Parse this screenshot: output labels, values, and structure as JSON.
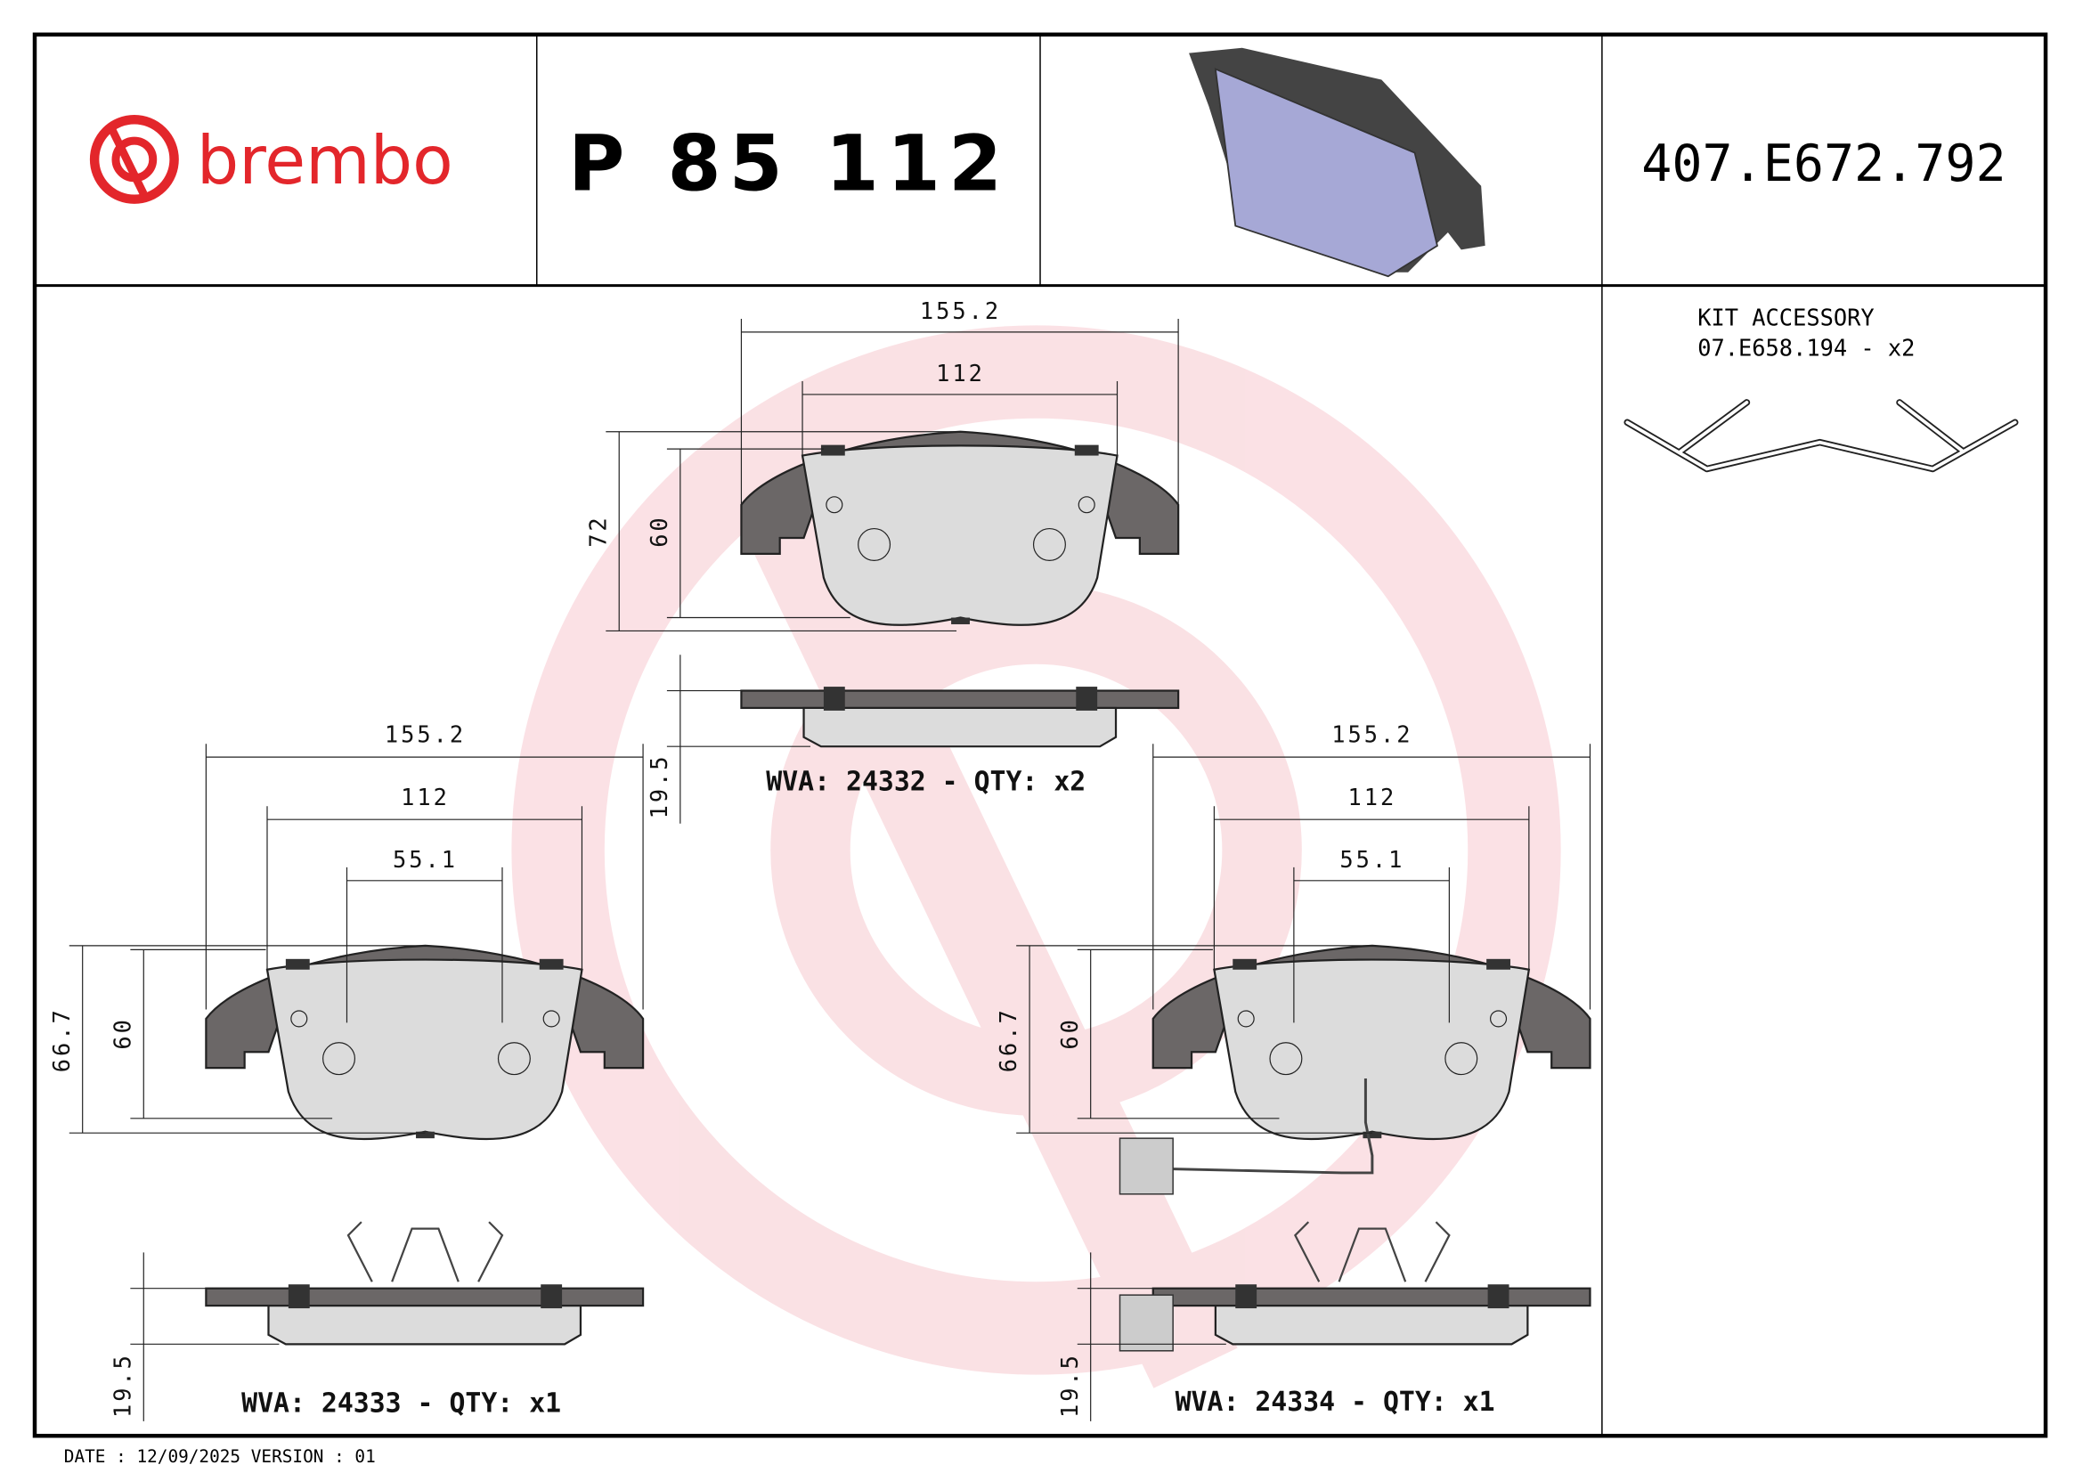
{
  "header": {
    "brand": "brembo",
    "brand_color": "#e3262b",
    "part_number": "P 85 112",
    "reference_code": "407.E672.792"
  },
  "kit_accessory": {
    "title": "KIT ACCESSORY",
    "code": "07.E658.194 - x2"
  },
  "views": {
    "top": {
      "width_total": "155.2",
      "width_inner": "112",
      "height_total": "72",
      "height_inner": "60",
      "thickness": "19.5",
      "label": "WVA: 24332 - QTY: x2"
    },
    "left": {
      "width_total": "155.2",
      "width_inner": "112",
      "width_center": "55.1",
      "height_total": "66.7",
      "height_inner": "60",
      "thickness": "19.5",
      "label": "WVA: 24333 - QTY: x1"
    },
    "right": {
      "width_total": "155.2",
      "width_inner": "112",
      "width_center": "55.1",
      "height_total": "66.7",
      "height_inner": "60",
      "thickness": "19.5",
      "label": "WVA: 24334 - QTY: x1"
    }
  },
  "footer": {
    "date_version": "DATE : 12/09/2025 VERSION : 01"
  },
  "colors": {
    "watermark": "#f7c9cf",
    "pad_backing": "#6b6767",
    "pad_friction": "#dcdcdc",
    "render_pad": "#a6a8d6"
  }
}
